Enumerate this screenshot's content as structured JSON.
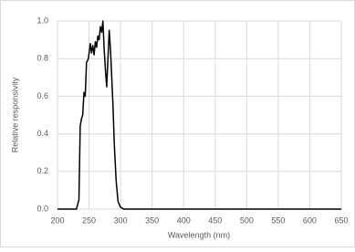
{
  "chart_data": {
    "type": "line",
    "x_label": "Wavelength (nm)",
    "y_label": "Relative responsivity",
    "x": [
      200,
      230,
      234,
      236,
      238,
      240,
      242,
      244,
      246,
      249,
      252,
      254,
      256,
      258,
      260,
      262,
      264,
      266,
      268,
      270,
      272,
      274,
      276,
      278,
      280,
      282,
      284,
      286,
      288,
      290,
      293,
      296,
      300,
      305,
      650
    ],
    "series": [
      {
        "name": "Relative responsivity",
        "color": "#000000",
        "values": [
          0,
          0,
          0.05,
          0.44,
          0.48,
          0.5,
          0.62,
          0.6,
          0.78,
          0.8,
          0.88,
          0.83,
          0.87,
          0.82,
          0.89,
          0.86,
          0.92,
          0.9,
          0.97,
          0.94,
          1.0,
          0.85,
          0.74,
          0.65,
          0.8,
          0.95,
          0.85,
          0.7,
          0.55,
          0.35,
          0.15,
          0.04,
          0.01,
          0,
          0
        ]
      }
    ],
    "xlim": [
      200,
      650
    ],
    "xticks": [
      200,
      250,
      300,
      350,
      400,
      450,
      500,
      550,
      600,
      650
    ],
    "ylim": [
      0,
      1.0
    ],
    "yticks": [
      {
        "value": 0,
        "label": "0.0"
      },
      0.2,
      0.4,
      0.6,
      0.8,
      {
        "value": 1.0,
        "label": "1.0"
      }
    ],
    "grid": true
  }
}
